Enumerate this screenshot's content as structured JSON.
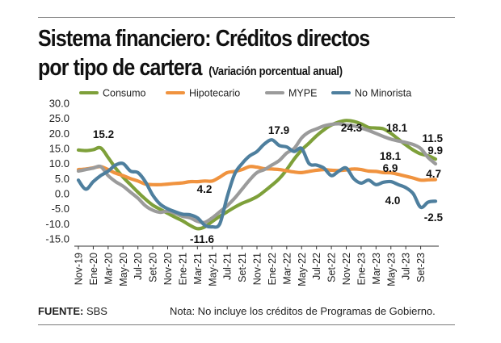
{
  "header": {
    "title_line1": "Sistema financiero: Créditos directos",
    "title_line2": "por tipo de cartera",
    "subtitle": "(Variación porcentual anual)"
  },
  "footer": {
    "source_label": "FUENTE:",
    "source_value": "SBS",
    "note": "Nota: No incluye los créditos de Programas de Gobierno."
  },
  "chart_data": {
    "type": "line",
    "title": "Sistema financiero: Créditos directos por tipo de cartera",
    "subtitle": "(Variación porcentual anual)",
    "xlabel": "",
    "ylabel": "",
    "ylim": [
      -15,
      30
    ],
    "yticks": [
      "30.0",
      "25.0",
      "20.0",
      "15.0",
      "10.0",
      "5.0",
      "0.0",
      "-5.0",
      "-10.0",
      "-15.0"
    ],
    "ytick_values": [
      30,
      25,
      20,
      15,
      10,
      5,
      0,
      -5,
      -10,
      -15
    ],
    "x_tick_labels": [
      "Nov-19",
      "Ene-20",
      "Mar-20",
      "May-20",
      "Jul-20",
      "Set-20",
      "Nov-20",
      "Ene-21",
      "Mar-21",
      "May-21",
      "Jul-21",
      "Set-21",
      "Nov-21",
      "Ene-22",
      "Mar-22",
      "May-22",
      "Jul-22",
      "Set-22",
      "Nov-22",
      "Ene-23",
      "Mar-23",
      "May-23",
      "Jul-23",
      "Set-23"
    ],
    "x_start": "Nov-19",
    "x_end": "Set-23",
    "x_frequency": "monthly",
    "grid": false,
    "legend_position": "top",
    "series": [
      {
        "name": "Consumo",
        "color": "#7ea03a",
        "values": [
          14.5,
          14.3,
          14.6,
          15.2,
          12.0,
          8.5,
          5.5,
          3.0,
          0.5,
          -1.8,
          -3.8,
          -5.2,
          -6.5,
          -7.8,
          -9.0,
          -10.5,
          -11.6,
          -11.0,
          -9.2,
          -7.5,
          -6.0,
          -4.5,
          -3.2,
          -2.2,
          -1.0,
          0.8,
          2.8,
          5.0,
          8.0,
          11.5,
          14.5,
          16.8,
          19.2,
          21.2,
          22.8,
          23.8,
          24.3,
          24.0,
          23.2,
          22.0,
          21.8,
          21.5,
          20.0,
          18.1,
          16.2,
          14.5,
          13.2,
          12.6,
          11.5
        ]
      },
      {
        "name": "Hipotecario",
        "color": "#f0933f",
        "values": [
          8.0,
          8.2,
          8.6,
          9.0,
          8.0,
          6.8,
          6.0,
          5.0,
          4.2,
          3.2,
          3.0,
          3.0,
          3.2,
          3.4,
          3.6,
          4.0,
          4.0,
          4.2,
          4.2,
          5.5,
          7.0,
          7.4,
          8.0,
          9.0,
          8.8,
          8.3,
          8.2,
          8.0,
          7.6,
          7.2,
          7.0,
          7.4,
          7.8,
          8.0,
          7.8,
          7.7,
          7.9,
          8.2,
          8.0,
          7.5,
          7.4,
          7.0,
          6.9,
          6.4,
          5.8,
          5.2,
          4.5,
          4.6,
          4.7
        ]
      },
      {
        "name": "MYPE",
        "color": "#9b9b9b",
        "values": [
          7.5,
          8.0,
          8.5,
          9.0,
          6.0,
          4.0,
          2.5,
          0.5,
          -1.5,
          -4.0,
          -5.5,
          -6.2,
          -5.8,
          -6.5,
          -7.5,
          -8.0,
          -9.2,
          -9.5,
          -8.0,
          -6.0,
          -4.0,
          -1.5,
          1.5,
          4.5,
          7.0,
          8.0,
          9.5,
          11.0,
          13.5,
          15.0,
          18.5,
          20.5,
          21.5,
          22.5,
          23.0,
          23.2,
          22.8,
          22.5,
          21.8,
          21.0,
          20.0,
          19.0,
          18.1,
          17.5,
          17.0,
          16.3,
          15.0,
          12.0,
          9.9
        ]
      },
      {
        "name": "No Minorista",
        "color": "#4e7f9e",
        "values": [
          4.5,
          1.5,
          4.0,
          6.0,
          7.5,
          9.5,
          10.0,
          7.5,
          7.0,
          4.0,
          -0.5,
          -3.5,
          -5.0,
          -6.0,
          -6.8,
          -7.0,
          -8.0,
          -10.5,
          -11.0,
          -10.0,
          -1.0,
          6.5,
          10.0,
          12.5,
          14.0,
          16.5,
          17.9,
          16.0,
          15.5,
          14.0,
          15.0,
          10.0,
          9.5,
          8.5,
          6.0,
          7.5,
          8.5,
          5.0,
          3.5,
          4.5,
          3.0,
          3.8,
          4.0,
          3.0,
          2.0,
          0.0,
          -4.5,
          -2.8,
          -2.5
        ]
      }
    ],
    "annotations": [
      {
        "series": "Consumo",
        "x": "Feb-20",
        "value": 15.2,
        "text": "15.2"
      },
      {
        "series": "Consumo",
        "x": "Mar-21",
        "value": -11.6,
        "text": "-11.6"
      },
      {
        "series": "Hipotecario",
        "x": "Mar-21",
        "value": 4.2,
        "text": "4.2"
      },
      {
        "series": "No Minorista",
        "x": "Feb-22",
        "value": 17.9,
        "text": "17.9"
      },
      {
        "series": "Consumo",
        "x": "Set-22",
        "value": 24.3,
        "text": "24.3"
      },
      {
        "series": "Consumo",
        "x": "Mar-23",
        "value": 18.1,
        "text": "18.1"
      },
      {
        "series": "MYPE",
        "x": "Mar-23",
        "value": 18.1,
        "text": "18.1"
      },
      {
        "series": "Hipotecario",
        "x": "Mar-23",
        "value": 6.9,
        "text": "6.9"
      },
      {
        "series": "No Minorista",
        "x": "May-23",
        "value": 4.0,
        "text": "4.0"
      },
      {
        "series": "Consumo",
        "x": "Set-23",
        "value": 11.5,
        "text": "11.5"
      },
      {
        "series": "MYPE",
        "x": "Set-23",
        "value": 9.9,
        "text": "9.9"
      },
      {
        "series": "Hipotecario",
        "x": "Set-23",
        "value": 4.7,
        "text": "4.7"
      },
      {
        "series": "No Minorista",
        "x": "Set-23",
        "value": -2.5,
        "text": "-2.5"
      }
    ]
  }
}
